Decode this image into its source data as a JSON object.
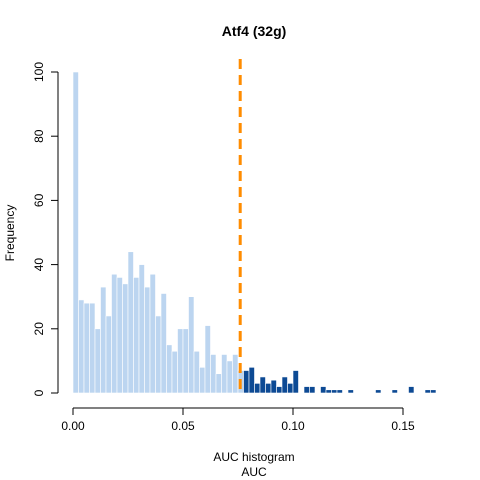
{
  "chart_data": {
    "type": "bar",
    "title": "Atf4 (32g)",
    "xlabel": "AUC histogram",
    "xlabel2": "AUC",
    "ylabel": "Frequency",
    "xlim": [
      0,
      0.165
    ],
    "ylim": [
      0,
      100
    ],
    "bin_width": 0.0025,
    "threshold": 0.076,
    "xticks": [
      {
        "value": 0.0,
        "label": "0.00"
      },
      {
        "value": 0.05,
        "label": "0.05"
      },
      {
        "value": 0.1,
        "label": "0.10"
      },
      {
        "value": 0.15,
        "label": "0.15"
      }
    ],
    "yticks": [
      {
        "value": 0,
        "label": "0"
      },
      {
        "value": 20,
        "label": "20"
      },
      {
        "value": 40,
        "label": "40"
      },
      {
        "value": 60,
        "label": "60"
      },
      {
        "value": 80,
        "label": "80"
      },
      {
        "value": 100,
        "label": "100"
      }
    ],
    "bins_x": [
      0.0,
      0.0025,
      0.005,
      0.0075,
      0.01,
      0.0125,
      0.015,
      0.0175,
      0.02,
      0.0225,
      0.025,
      0.0275,
      0.03,
      0.0325,
      0.035,
      0.0375,
      0.04,
      0.0425,
      0.045,
      0.0475,
      0.05,
      0.0525,
      0.055,
      0.0575,
      0.06,
      0.0625,
      0.065,
      0.0675,
      0.07,
      0.0725,
      0.075,
      0.0775,
      0.08,
      0.0825,
      0.085,
      0.0875,
      0.09,
      0.0925,
      0.095,
      0.0975,
      0.1,
      0.1025,
      0.105,
      0.1075,
      0.11,
      0.1125,
      0.115,
      0.1175,
      0.12,
      0.1225,
      0.125,
      0.1275,
      0.13,
      0.1325,
      0.135,
      0.1375,
      0.14,
      0.1425,
      0.145,
      0.1475,
      0.15,
      0.1525,
      0.155,
      0.1575,
      0.16,
      0.1625
    ],
    "counts": [
      100,
      29,
      28,
      28,
      20,
      33,
      24,
      37,
      36,
      34,
      44,
      36,
      40,
      33,
      37,
      24,
      31,
      15,
      13,
      20,
      20,
      30,
      13,
      8,
      21,
      12,
      6,
      12,
      10,
      12,
      7,
      7,
      8,
      3,
      5,
      3,
      4,
      2,
      5,
      3,
      7,
      0,
      2,
      2,
      0,
      2,
      1,
      1,
      1,
      0,
      1,
      0,
      0,
      0,
      0,
      1,
      0,
      0,
      1,
      0,
      0,
      2,
      0,
      0,
      1,
      1
    ],
    "colors": {
      "below_threshold": "#bcd5f0",
      "above_threshold": "#0d4a94",
      "threshold_line": "#ff8c00"
    }
  }
}
